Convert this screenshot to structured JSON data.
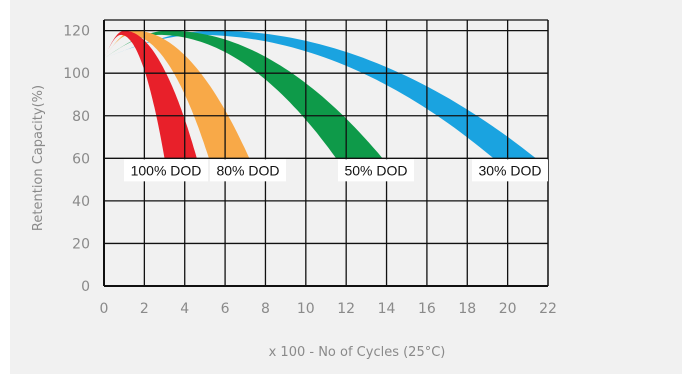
{
  "chart_data": {
    "type": "area",
    "title": "",
    "xlabel": "x 100 - No of Cycles (25°C)",
    "ylabel": "Retention Capacity(%)",
    "xlim": [
      0,
      22
    ],
    "ylim": [
      0,
      125
    ],
    "x_ticks": [
      "0",
      "2",
      "4",
      "6",
      "8",
      "10",
      "12",
      "14",
      "16",
      "18",
      "20",
      "22"
    ],
    "y_ticks": [
      "0",
      "20",
      "40",
      "60",
      "80",
      "100",
      "120"
    ],
    "grid": true,
    "series": [
      {
        "name": "100% DOD",
        "color": "#e8202a",
        "peak_x": 1,
        "peak_y": 120,
        "start_y": 107,
        "end_y": 60,
        "end_x_range": [
          3,
          4.6
        ]
      },
      {
        "name": "80% DOD",
        "color": "#f8a948",
        "peak_x": 1.5,
        "peak_y": 120,
        "start_y": 107,
        "end_y": 60,
        "end_x_range": [
          5.2,
          7.2
        ]
      },
      {
        "name": "50% DOD",
        "color": "#0e9a49",
        "peak_x": 3.2,
        "peak_y": 120,
        "start_y": 107,
        "end_y": 60,
        "end_x_range": [
          11.5,
          13.8
        ]
      },
      {
        "name": "30% DOD",
        "color": "#1aa3e0",
        "peak_x": 5.5,
        "peak_y": 120,
        "start_y": 107,
        "end_y": 60,
        "end_x_range": [
          19.3,
          21.4
        ]
      }
    ]
  }
}
